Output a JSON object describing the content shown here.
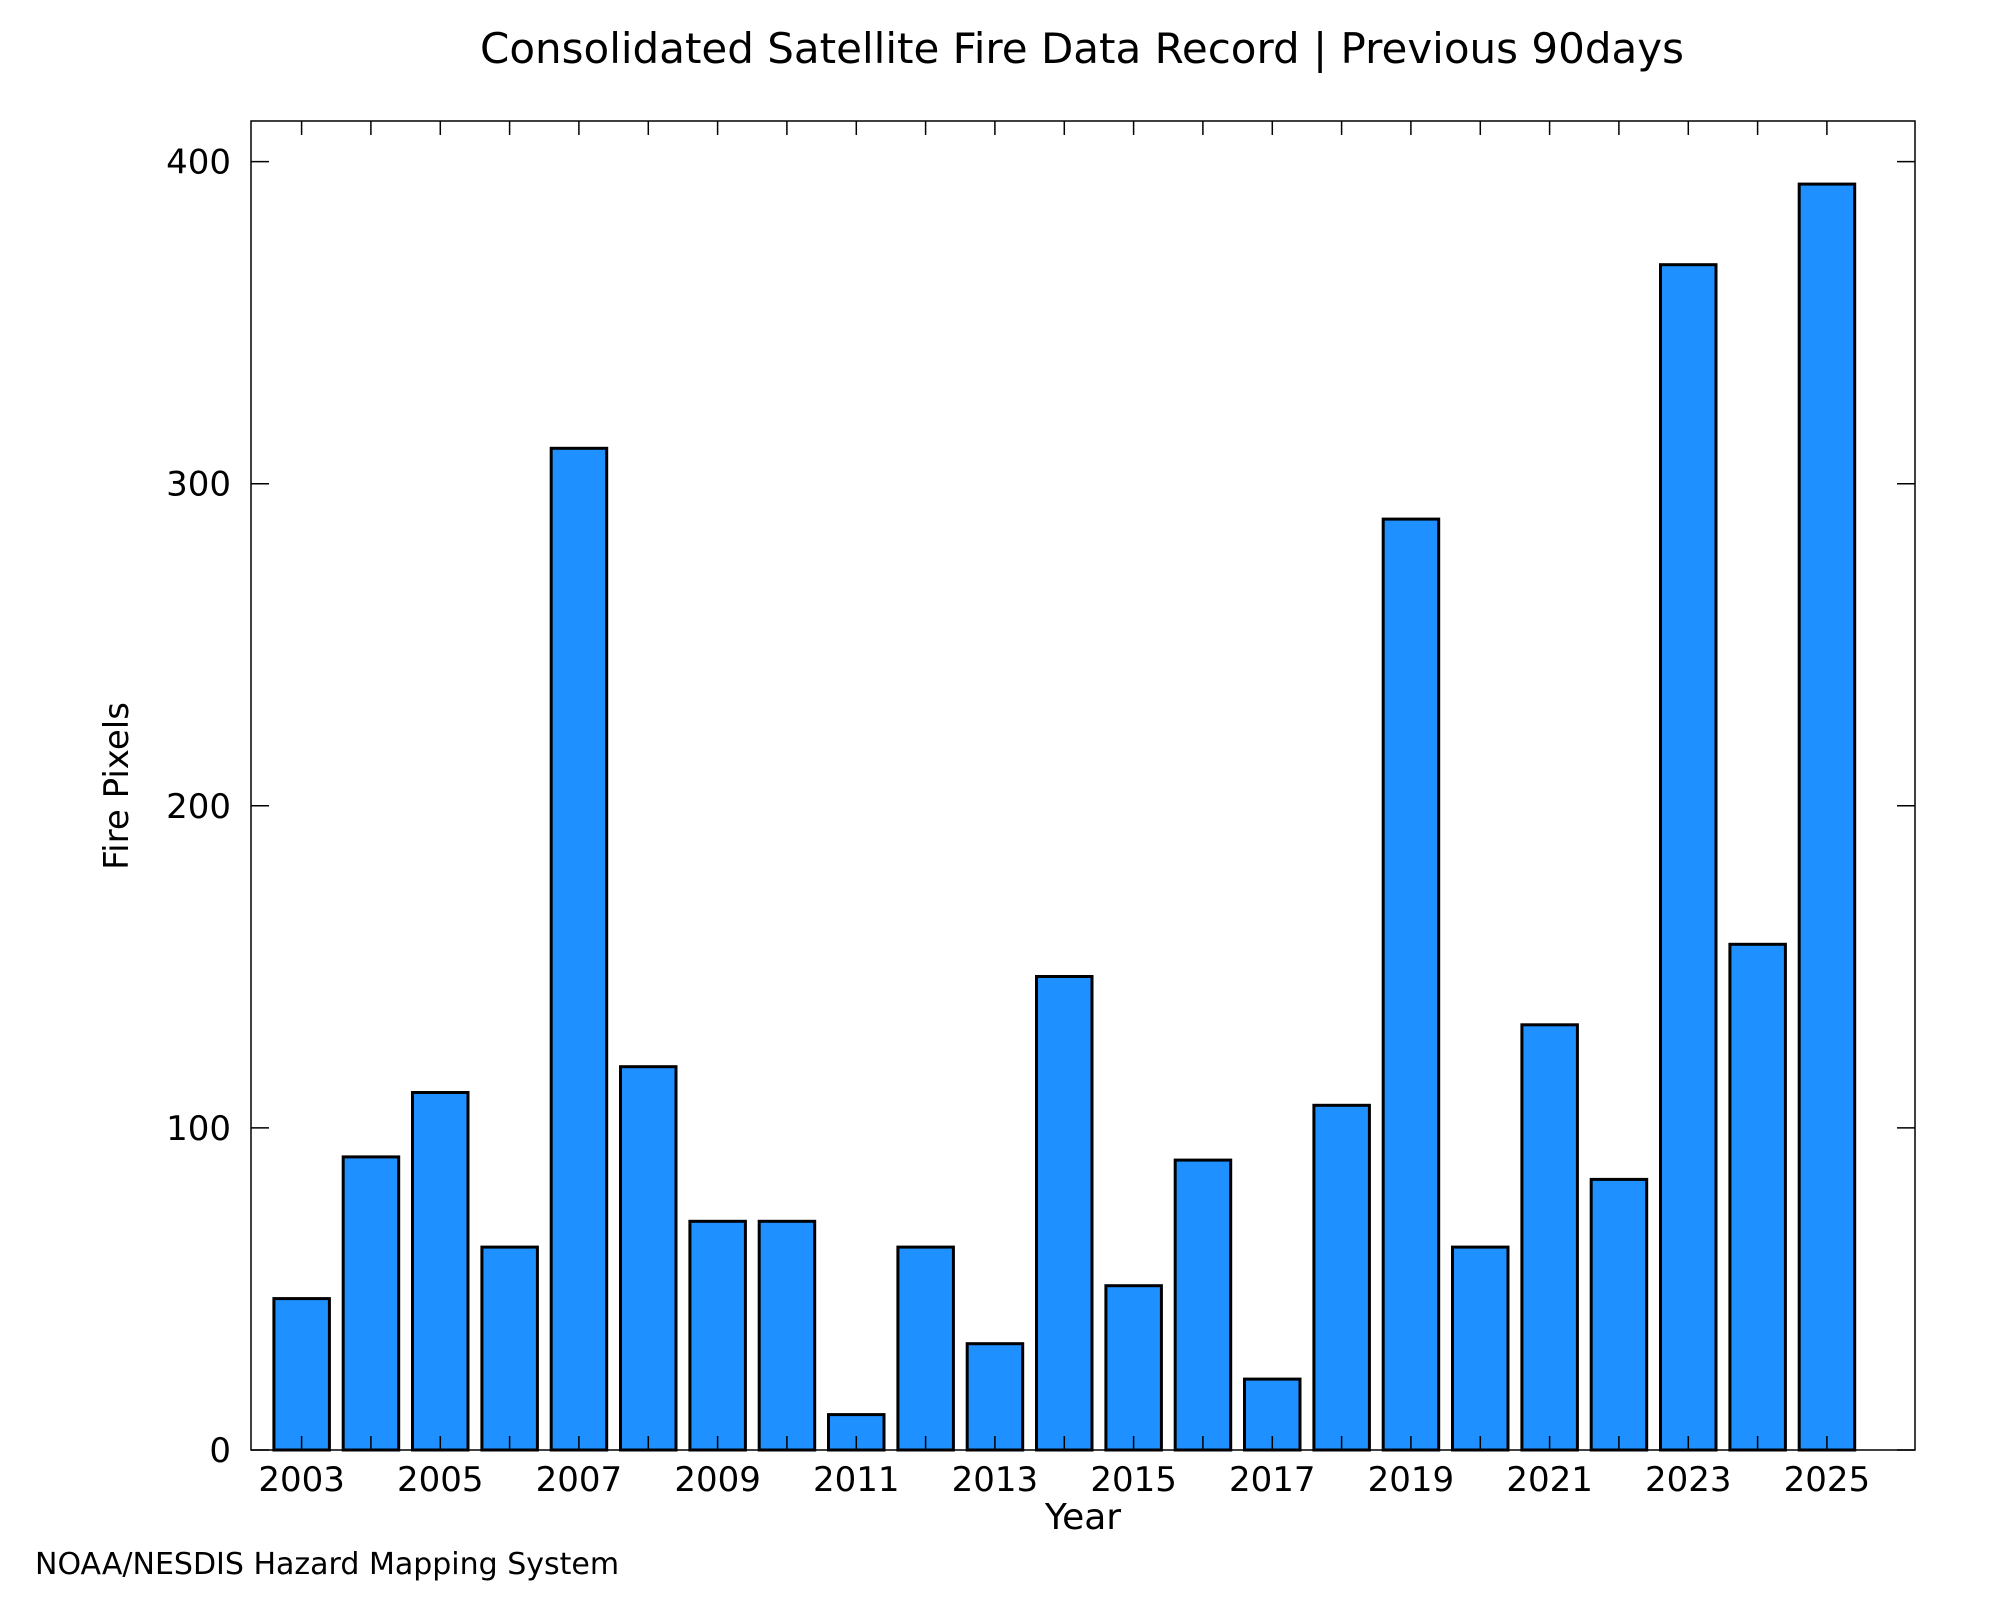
{
  "chart_data": {
    "type": "bar",
    "title": "Consolidated Satellite Fire Data Record | Previous 90days",
    "xlabel": "Year",
    "ylabel": "Fire Pixels",
    "credit": "NOAA/NESDIS Hazard Mapping System",
    "categories": [
      2003,
      2004,
      2005,
      2006,
      2007,
      2008,
      2009,
      2010,
      2011,
      2012,
      2013,
      2014,
      2015,
      2016,
      2017,
      2018,
      2019,
      2020,
      2021,
      2022,
      2023,
      2024,
      2025
    ],
    "values": [
      47,
      91,
      111,
      63,
      311,
      119,
      71,
      71,
      11,
      63,
      33,
      147,
      51,
      90,
      22,
      107,
      289,
      63,
      132,
      84,
      368,
      157,
      393
    ],
    "x_tick_labels": [
      "2003",
      "2005",
      "2007",
      "2009",
      "2011",
      "2013",
      "2015",
      "2017",
      "2019",
      "2021",
      "2023",
      "2025"
    ],
    "y_tick_labels": [
      "0",
      "100",
      "200",
      "300",
      "400"
    ],
    "y_ticks": [
      0,
      100,
      200,
      300,
      400
    ],
    "ylim": [
      0,
      412.6
    ],
    "xlim": [
      2002.27,
      2026.27
    ],
    "grid": false,
    "bar_color": "#1e90ff",
    "edge_color": "#000000",
    "credit_color": "#808080"
  }
}
